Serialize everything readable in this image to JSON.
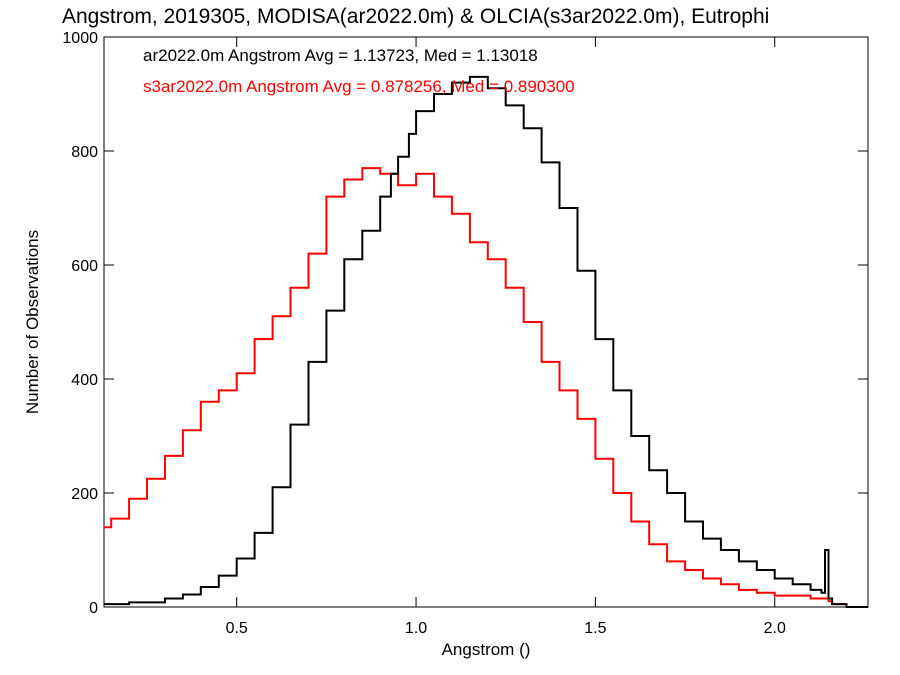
{
  "chart_data": {
    "type": "line",
    "step": true,
    "title": "Angstrom, 2019305, MODISA(ar2022.0m) & OLCIA(s3ar2022.0m), Eutrophi",
    "xlabel": "Angstrom ()",
    "ylabel": "Number of Observations",
    "xlim": [
      0.13,
      2.26
    ],
    "ylim": [
      0,
      1000
    ],
    "xticks": [
      0.5,
      1.0,
      1.5,
      2.0
    ],
    "xtick_labels": [
      "0.5",
      "1.0",
      "1.5",
      "2.0"
    ],
    "yticks": [
      0,
      200,
      400,
      600,
      800,
      1000
    ],
    "ytick_labels": [
      "0",
      "200",
      "400",
      "600",
      "800",
      "1000"
    ],
    "grid": false,
    "annotations": [
      {
        "text": "ar2022.0m Angstrom Avg = 1.13723, Med = 1.13018",
        "color": "#000000"
      },
      {
        "text": "s3ar2022.0m Angstrom Avg = 0.878256, Med = 0.890300",
        "color": "#ff0000"
      }
    ],
    "series": [
      {
        "color": "#000000",
        "x": [
          0.13,
          0.2,
          0.3,
          0.35,
          0.4,
          0.45,
          0.5,
          0.55,
          0.6,
          0.65,
          0.7,
          0.75,
          0.8,
          0.85,
          0.9,
          0.93,
          0.95,
          0.98,
          1.0,
          1.05,
          1.1,
          1.15,
          1.2,
          1.25,
          1.3,
          1.35,
          1.4,
          1.45,
          1.5,
          1.55,
          1.6,
          1.65,
          1.7,
          1.75,
          1.8,
          1.85,
          1.9,
          1.95,
          2.0,
          2.05,
          2.1,
          2.13,
          2.14,
          2.15,
          2.16,
          2.2,
          2.26
        ],
        "y": [
          5,
          8,
          15,
          22,
          35,
          55,
          85,
          130,
          210,
          320,
          430,
          520,
          610,
          660,
          720,
          760,
          790,
          830,
          870,
          900,
          920,
          930,
          910,
          880,
          840,
          780,
          700,
          590,
          470,
          380,
          300,
          240,
          200,
          150,
          120,
          100,
          80,
          65,
          50,
          40,
          30,
          25,
          100,
          15,
          5,
          0,
          0
        ]
      },
      {
        "color": "#ff0000",
        "x": [
          0.13,
          0.15,
          0.2,
          0.25,
          0.3,
          0.35,
          0.4,
          0.45,
          0.5,
          0.55,
          0.6,
          0.65,
          0.7,
          0.75,
          0.8,
          0.85,
          0.9,
          0.95,
          1.0,
          1.05,
          1.1,
          1.15,
          1.2,
          1.25,
          1.3,
          1.35,
          1.4,
          1.45,
          1.5,
          1.55,
          1.6,
          1.65,
          1.7,
          1.75,
          1.8,
          1.85,
          1.9,
          1.95,
          2.0,
          2.05,
          2.1,
          2.15,
          2.16,
          2.2,
          2.26
        ],
        "y": [
          140,
          155,
          190,
          225,
          265,
          310,
          360,
          380,
          410,
          470,
          510,
          560,
          620,
          720,
          750,
          770,
          760,
          740,
          760,
          720,
          690,
          640,
          610,
          560,
          500,
          430,
          380,
          330,
          260,
          200,
          150,
          110,
          80,
          65,
          50,
          40,
          30,
          25,
          20,
          20,
          15,
          10,
          5,
          0,
          0
        ]
      }
    ]
  }
}
